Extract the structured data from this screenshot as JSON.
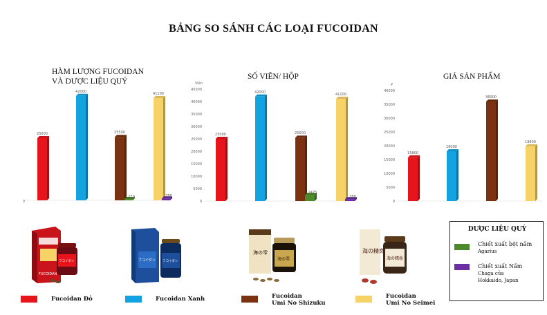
{
  "title": "BẢNG SO SÁNH CÁC LOẠI FUCOIDAN",
  "colors": {
    "red": "#e8141b",
    "blue": "#12a3e0",
    "brown": "#7a3210",
    "yellow": "#f7d267",
    "green": "#4e8a2c",
    "purple": "#6b2fa3"
  },
  "chart_data": [
    {
      "type": "bar",
      "title_line1": "HÀM LƯỢNG FUCOIDAN",
      "title_line2": "VÀ DƯỢC LIỆU QUÝ",
      "categories": [
        "Fucoidan Đỏ",
        "Fucoidan Xanh",
        "Fucoidan Umi No Shizuku",
        "Fucoidan Umi No Seimei"
      ],
      "series": [
        {
          "name": "Fucoidan",
          "values": [
            25000,
            42000,
            25500,
            41100
          ],
          "colors": [
            "#e8141b",
            "#12a3e0",
            "#7a3210",
            "#f7d267"
          ]
        },
        {
          "name": "Chiết xuất bột nấm Agarius",
          "values": [
            0,
            0,
            270,
            0
          ],
          "color": "#4e8a2c"
        },
        {
          "name": "Chiết xuất Nấm Chaga của Hokkaido, Japan",
          "values": [
            0,
            0,
            0,
            780
          ],
          "color": "#6b2fa3"
        }
      ],
      "data_labels": [
        "25000",
        "42000",
        "25500",
        "41100",
        "270",
        "780"
      ],
      "ylim": [
        0,
        45000
      ],
      "y_tick_labels": [
        "0"
      ],
      "ylabel": ""
    },
    {
      "type": "bar",
      "title_line1": "SỐ VIÊN/ HỘP",
      "title_line2": "",
      "categories": [
        "Fucoidan Đỏ",
        "Fucoidan Xanh",
        "Fucoidan Umi No Shizuku",
        "Fucoidan Umi No Seimei"
      ],
      "series": [
        {
          "name": "Fucoidan",
          "values": [
            25000,
            42000,
            25500,
            41100
          ],
          "colors": [
            "#e8141b",
            "#12a3e0",
            "#7a3210",
            "#f7d267"
          ]
        },
        {
          "name": "Chiết xuất bột nấm Agarius",
          "values": [
            0,
            0,
            2475,
            0
          ],
          "color": "#4e8a2c"
        },
        {
          "name": "Chiết xuất Nấm Chaga của Hokkaido, Japan",
          "values": [
            0,
            0,
            0,
            780
          ],
          "color": "#6b2fa3"
        }
      ],
      "data_labels": [
        "25000",
        "42000",
        "25500",
        "41100",
        "2475",
        "780"
      ],
      "ylim": [
        0,
        45000
      ],
      "y_tick_labels": [
        "0",
        "5000",
        "10000",
        "15000",
        "20000",
        "25000",
        "30000",
        "35000",
        "40000",
        "45000"
      ],
      "ylabel": "Viên"
    },
    {
      "type": "bar",
      "title_line1": "GIÁ SẢN PHẨM",
      "title_line2": "",
      "categories": [
        "Fucoidan Đỏ",
        "Fucoidan Xanh",
        "Fucoidan Umi No Shizuku",
        "Fucoidan Umi No Seimei"
      ],
      "series": [
        {
          "name": "Giá",
          "values": [
            15800,
            18000,
            36000,
            19800
          ],
          "colors": [
            "#e8141b",
            "#12a3e0",
            "#7a3210",
            "#f7d267"
          ]
        }
      ],
      "data_labels": [
        "15800",
        "18000",
        "36000",
        "19800"
      ],
      "ylim": [
        0,
        40000
      ],
      "y_tick_labels": [
        "0",
        "5000",
        "10000",
        "15000",
        "20000",
        "25000",
        "30000",
        "35000",
        "40000"
      ],
      "ylabel": "¥"
    }
  ],
  "legend": [
    {
      "label_line1": "Fucoidan Đỏ",
      "label_line2": "",
      "color": "#e8141b"
    },
    {
      "label_line1": "Fucoidan Xanh",
      "label_line2": "",
      "color": "#12a3e0"
    },
    {
      "label_line1": "Fucoidan",
      "label_line2": "Umi No Shizuku",
      "color": "#7a3210"
    },
    {
      "label_line1": "Fucoidan",
      "label_line2": "Umi No Seimei",
      "color": "#f7d267"
    }
  ],
  "herb_legend": {
    "title": "DƯỢC LIỆU QUÝ",
    "items": [
      {
        "line1": "Chiết xuất bột nấm",
        "line2": "Agarius",
        "line3": "",
        "color": "#4e8a2c"
      },
      {
        "line1": "Chiết xuất Nấm",
        "line2": "Chaga của",
        "line3": "Hokkaido, Japan",
        "color": "#6b2fa3"
      }
    ]
  },
  "products": [
    {
      "icon": "fucoidan-red-package",
      "box_text": "FUCOIDAN",
      "jar_text": "フコイダン"
    },
    {
      "icon": "fucoidan-blue-package",
      "box_text": "フコイダン",
      "jar_text": "フコイダン"
    },
    {
      "icon": "umi-no-shizuku-package",
      "box_text": "海の雫",
      "jar_text": "海の雫"
    },
    {
      "icon": "umi-no-seimei-package",
      "box_text": "海の精命",
      "jar_text": "海の精命"
    }
  ]
}
